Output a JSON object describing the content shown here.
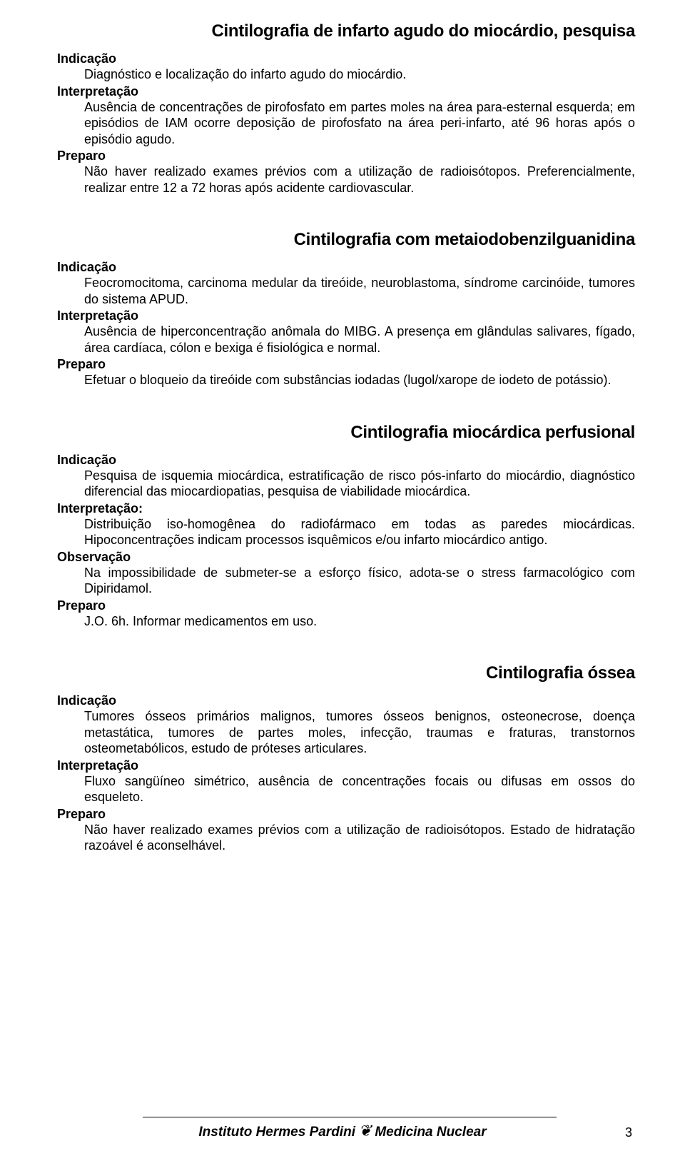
{
  "sections": [
    {
      "title": "Cintilografia de infarto agudo do miocárdio, pesquisa",
      "blocks": [
        {
          "label": "Indicação",
          "text": "Diagnóstico e localização do infarto agudo do miocárdio."
        },
        {
          "label": "Interpretação",
          "text": "Ausência de concentrações de pirofosfato em partes moles na área para-esternal esquerda; em episódios de IAM ocorre deposição de pirofosfato na área peri-infarto, até 96 horas após o episódio agudo."
        },
        {
          "label": "Preparo",
          "text": "Não haver realizado exames prévios com a utilização de radioisótopos. Preferencialmente, realizar entre 12 a 72 horas após acidente cardiovascular."
        }
      ]
    },
    {
      "title": "Cintilografia com metaiodobenzilguanidina",
      "blocks": [
        {
          "label": "Indicação",
          "text": "Feocromocitoma, carcinoma medular da tireóide, neuroblastoma, síndrome carcinóide, tumores do sistema APUD."
        },
        {
          "label": "Interpretação",
          "text": "Ausência de hiperconcentração anômala do MIBG. A presença em glândulas salivares, fígado, área cardíaca, cólon e bexiga é fisiológica e normal."
        },
        {
          "label": "Preparo",
          "text": "Efetuar o bloqueio da tireóide com substâncias iodadas (lugol/xarope de iodeto de potássio)."
        }
      ]
    },
    {
      "title": "Cintilografia miocárdica perfusional",
      "blocks": [
        {
          "label": "Indicação",
          "text": "Pesquisa de isquemia miocárdica, estratificação de risco pós-infarto do miocárdio, diagnóstico diferencial das miocardiopatias, pesquisa de viabilidade miocárdica."
        },
        {
          "label": "Interpretação:",
          "text": "Distribuição iso-homogênea do radiofármaco em todas as paredes miocárdicas. Hipoconcentrações indicam processos isquêmicos e/ou infarto miocárdico antigo."
        },
        {
          "label": "Observação",
          "text": "Na impossibilidade de submeter-se a esforço físico, adota-se o stress farmacológico com Dipiridamol."
        },
        {
          "label": "Preparo",
          "text": "J.O. 6h. Informar medicamentos em uso."
        }
      ]
    },
    {
      "title": "Cintilografia óssea",
      "blocks": [
        {
          "label": "Indicação",
          "text": "Tumores ósseos primários malignos, tumores ósseos benignos, osteonecrose, doença metastática, tumores de partes moles, infecção, traumas e fraturas, transtornos osteometabólicos, estudo de próteses articulares."
        },
        {
          "label": "Interpretação",
          "text": "Fluxo sangüíneo simétrico, ausência de concentrações focais ou difusas em ossos do esqueleto."
        },
        {
          "label": "Preparo",
          "text": "Não haver realizado exames prévios com a utilização de radioisótopos. Estado de hidratação razoável é aconselhável."
        }
      ]
    }
  ],
  "footer": {
    "left": "Instituto Hermes Pardini",
    "right": "Medicina Nuclear",
    "page": "3"
  }
}
